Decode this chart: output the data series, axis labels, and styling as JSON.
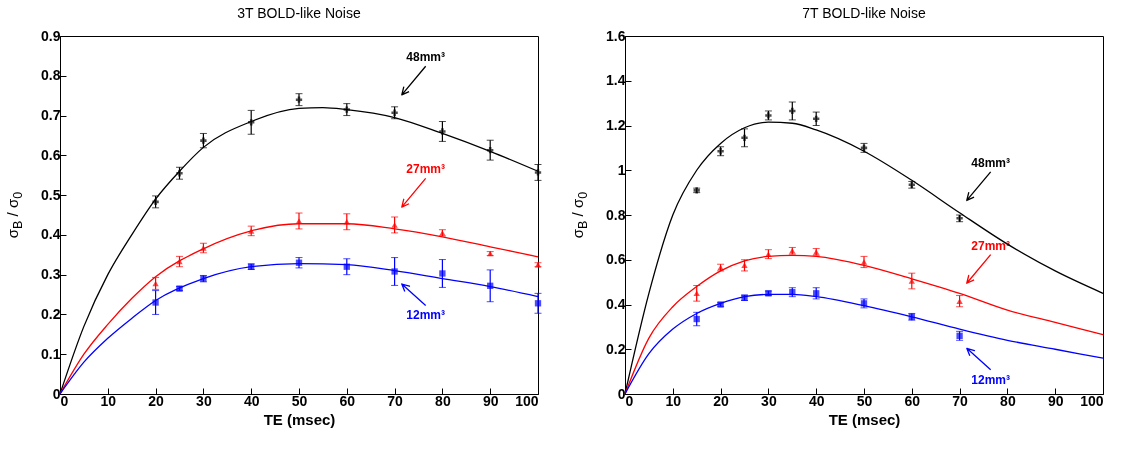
{
  "chart_data": [
    {
      "type": "scatter",
      "title": "3T BOLD-like Noise",
      "xlabel": "TE (msec)",
      "ylabel": "σ$_{B}$ / σ$_{0}$",
      "xlim": [
        0,
        100
      ],
      "xticks": [
        0,
        10,
        20,
        30,
        40,
        50,
        60,
        70,
        80,
        90,
        100
      ],
      "ylim": [
        0,
        0.9
      ],
      "yticks": [
        0,
        0.1,
        0.2,
        0.3,
        0.4,
        0.5,
        0.6,
        0.7,
        0.8,
        0.9
      ],
      "grid": false,
      "series": [
        {
          "name": "48mm³",
          "color": "#000000",
          "marker": "cross",
          "x": [
            20,
            25,
            30,
            40,
            50,
            60,
            70,
            80,
            90,
            100
          ],
          "values": [
            0.483,
            0.555,
            0.637,
            0.683,
            0.74,
            0.715,
            0.707,
            0.66,
            0.613,
            0.557
          ],
          "errors": [
            0.015,
            0.015,
            0.018,
            0.03,
            0.015,
            0.015,
            0.015,
            0.025,
            0.025,
            0.02
          ]
        },
        {
          "name": "27mm³",
          "color": "#ff0000",
          "marker": "triangle",
          "x": [
            20,
            25,
            30,
            40,
            50,
            60,
            70,
            80,
            90,
            100
          ],
          "values": [
            0.278,
            0.333,
            0.367,
            0.41,
            0.435,
            0.433,
            0.425,
            0.405,
            0.353,
            0.325
          ],
          "errors": [
            0.015,
            0.013,
            0.012,
            0.012,
            0.02,
            0.02,
            0.02,
            0.008,
            0.005,
            0.005
          ]
        },
        {
          "name": "12mm³",
          "color": "#0000ff",
          "marker": "square",
          "x": [
            20,
            25,
            30,
            40,
            50,
            60,
            70,
            80,
            90,
            100
          ],
          "values": [
            0.23,
            0.265,
            0.29,
            0.32,
            0.33,
            0.32,
            0.308,
            0.303,
            0.272,
            0.228
          ],
          "errors": [
            0.03,
            0.005,
            0.008,
            0.007,
            0.013,
            0.02,
            0.035,
            0.035,
            0.04,
            0.025
          ]
        },
        {
          "type": "line",
          "color": "#000000",
          "x": [
            0,
            5,
            10,
            15,
            20,
            25,
            30,
            40,
            50,
            55,
            60,
            70,
            80,
            90,
            100
          ],
          "values": [
            0,
            0.17,
            0.3,
            0.4,
            0.49,
            0.56,
            0.62,
            0.685,
            0.718,
            0.72,
            0.715,
            0.695,
            0.655,
            0.61,
            0.56
          ]
        },
        {
          "type": "line",
          "color": "#ff0000",
          "x": [
            0,
            5,
            10,
            15,
            20,
            30,
            40,
            50,
            60,
            70,
            80,
            90,
            100
          ],
          "values": [
            0,
            0.1,
            0.175,
            0.24,
            0.295,
            0.365,
            0.41,
            0.428,
            0.428,
            0.415,
            0.395,
            0.37,
            0.345
          ]
        },
        {
          "type": "line",
          "color": "#0000ff",
          "x": [
            0,
            5,
            10,
            15,
            20,
            30,
            40,
            50,
            60,
            70,
            80,
            90,
            100
          ],
          "values": [
            0,
            0.08,
            0.14,
            0.19,
            0.235,
            0.29,
            0.32,
            0.328,
            0.325,
            0.31,
            0.29,
            0.27,
            0.245
          ]
        }
      ]
    },
    {
      "type": "scatter",
      "title": "7T BOLD-like Noise",
      "xlabel": "TE (msec)",
      "ylabel": "σ$_{B}$ / σ$_{0}$",
      "xlim": [
        0,
        100
      ],
      "xticks": [
        0,
        10,
        20,
        30,
        40,
        50,
        60,
        70,
        80,
        90,
        100
      ],
      "ylim": [
        0,
        1.6
      ],
      "yticks": [
        0,
        0.2,
        0.4,
        0.6,
        0.8,
        1,
        1.2,
        1.4,
        1.6
      ],
      "grid": false,
      "series": [
        {
          "name": "48mm³",
          "color": "#000000",
          "marker": "cross",
          "x": [
            15,
            20,
            25,
            30,
            35,
            40,
            50,
            60,
            70
          ],
          "values": [
            0.91,
            1.085,
            1.145,
            1.245,
            1.265,
            1.23,
            1.1,
            0.935,
            0.785
          ],
          "errors": [
            0.01,
            0.02,
            0.04,
            0.02,
            0.04,
            0.03,
            0.02,
            0.015,
            0.015
          ]
        },
        {
          "name": "27mm³",
          "color": "#ff0000",
          "marker": "triangle",
          "x": [
            15,
            20,
            25,
            30,
            35,
            40,
            50,
            60,
            70
          ],
          "values": [
            0.45,
            0.565,
            0.575,
            0.625,
            0.64,
            0.635,
            0.59,
            0.505,
            0.415
          ],
          "errors": [
            0.035,
            0.015,
            0.025,
            0.02,
            0.015,
            0.015,
            0.025,
            0.035,
            0.025
          ]
        },
        {
          "name": "12mm³",
          "color": "#0000ff",
          "marker": "square",
          "x": [
            15,
            20,
            25,
            30,
            35,
            40,
            50,
            60,
            70
          ],
          "values": [
            0.335,
            0.4,
            0.43,
            0.45,
            0.455,
            0.45,
            0.405,
            0.345,
            0.26
          ],
          "errors": [
            0.03,
            0.008,
            0.012,
            0.01,
            0.02,
            0.025,
            0.02,
            0.015,
            0.02
          ]
        },
        {
          "type": "line",
          "color": "#000000",
          "x": [
            0,
            5,
            10,
            15,
            20,
            25,
            30,
            35,
            40,
            50,
            60,
            70,
            80,
            90,
            100
          ],
          "values": [
            0,
            0.45,
            0.8,
            1.0,
            1.12,
            1.19,
            1.215,
            1.21,
            1.18,
            1.085,
            0.955,
            0.81,
            0.67,
            0.55,
            0.45
          ]
        },
        {
          "type": "line",
          "color": "#ff0000",
          "x": [
            0,
            5,
            10,
            15,
            20,
            25,
            30,
            35,
            40,
            50,
            60,
            70,
            80,
            90,
            100
          ],
          "values": [
            0,
            0.25,
            0.39,
            0.48,
            0.55,
            0.595,
            0.615,
            0.62,
            0.615,
            0.575,
            0.515,
            0.45,
            0.375,
            0.32,
            0.265
          ]
        },
        {
          "type": "line",
          "color": "#0000ff",
          "x": [
            0,
            5,
            10,
            15,
            20,
            25,
            30,
            35,
            40,
            50,
            60,
            70,
            80,
            90,
            100
          ],
          "values": [
            0,
            0.18,
            0.29,
            0.36,
            0.405,
            0.435,
            0.445,
            0.445,
            0.435,
            0.395,
            0.345,
            0.29,
            0.24,
            0.2,
            0.16
          ]
        }
      ]
    }
  ]
}
